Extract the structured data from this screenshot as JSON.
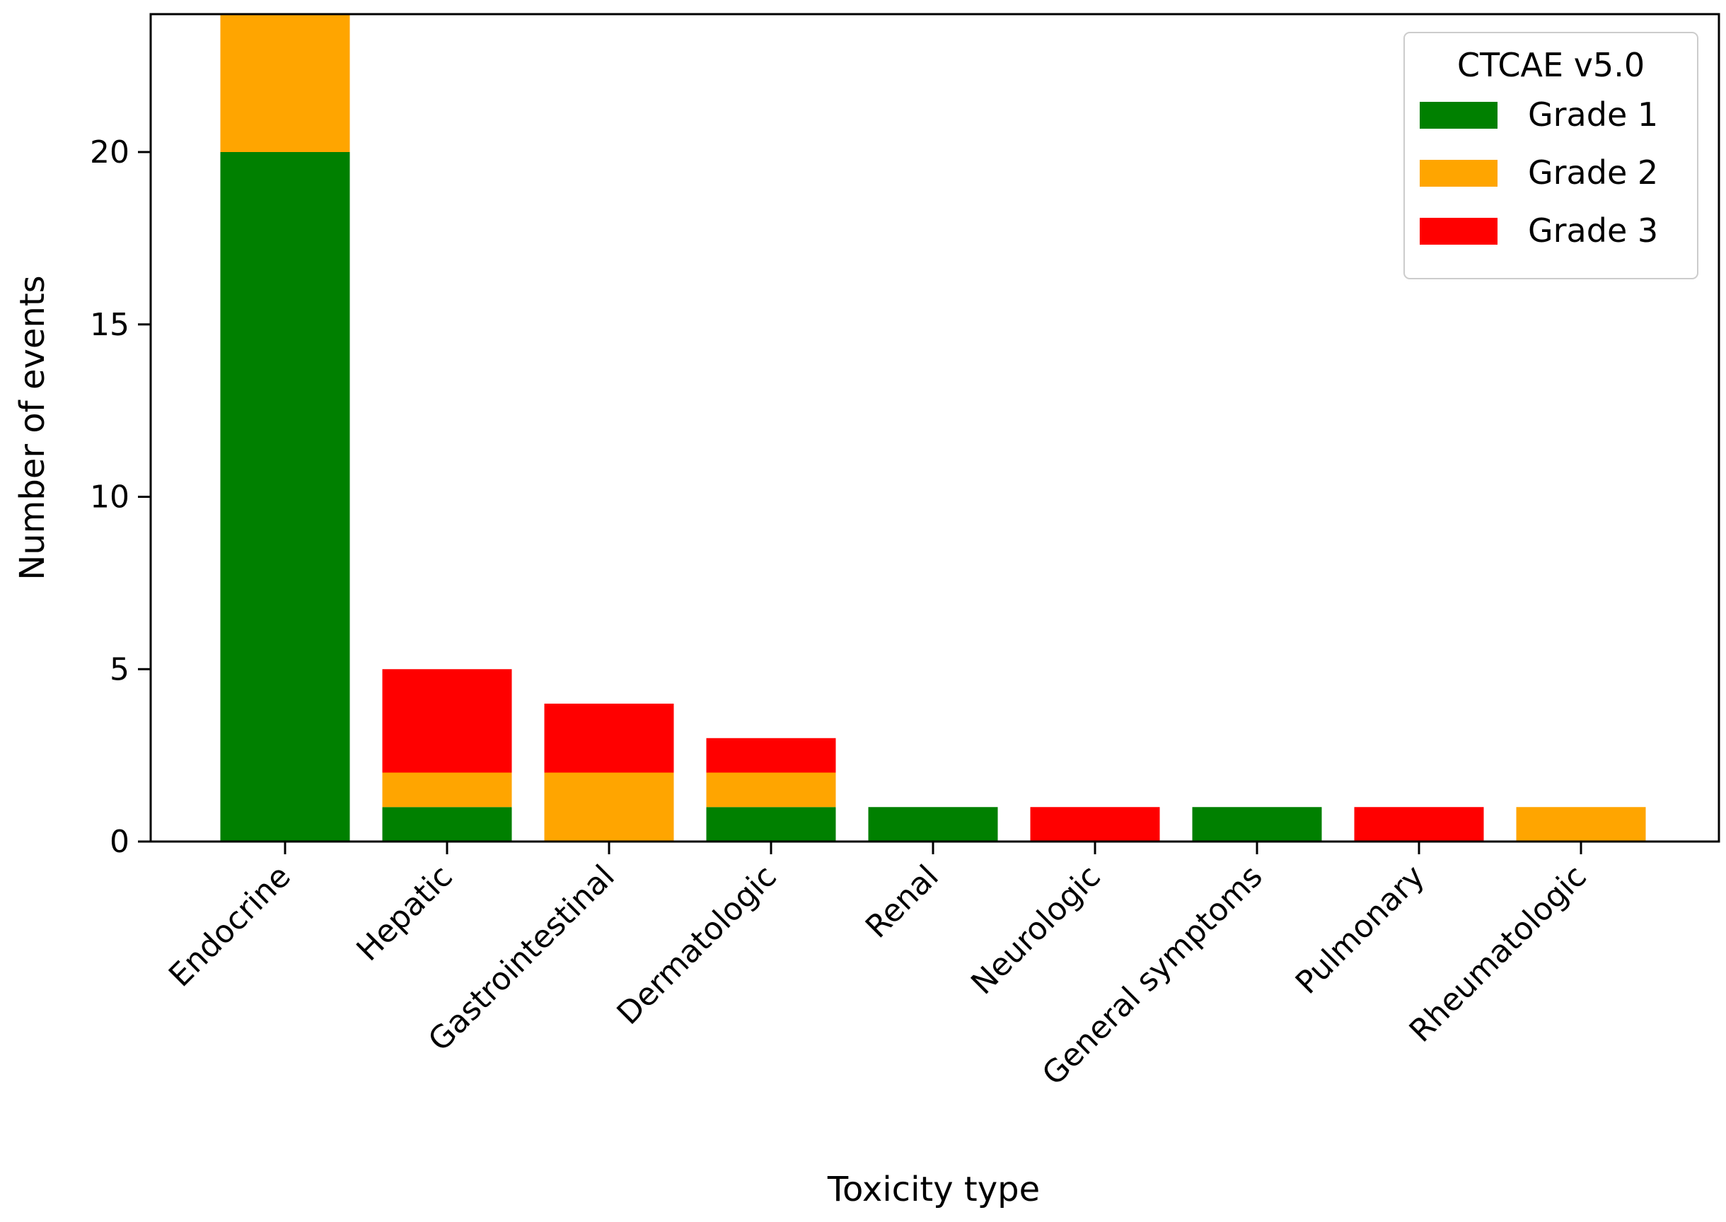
{
  "chart_data": {
    "type": "bar",
    "stacked": true,
    "categories": [
      "Endocrine",
      "Hepatic",
      "Gastrointestinal",
      "Dermatologic",
      "Renal",
      "Neurologic",
      "General symptoms",
      "Pulmonary",
      "Rheumatologic"
    ],
    "series": [
      {
        "name": "Grade 1",
        "color": "#008000",
        "values": [
          20,
          1,
          0,
          1,
          1,
          0,
          1,
          0,
          0
        ]
      },
      {
        "name": "Grade 2",
        "color": "#ffa500",
        "values": [
          4,
          1,
          2,
          1,
          0,
          0,
          0,
          0,
          1
        ]
      },
      {
        "name": "Grade 3",
        "color": "#ff0000",
        "values": [
          0,
          3,
          2,
          1,
          0,
          1,
          0,
          1,
          0
        ]
      }
    ],
    "xlabel": "Toxicity type",
    "ylabel": "Number of events",
    "ylim": [
      0,
      24
    ],
    "yticks": [
      0,
      5,
      10,
      15,
      20
    ],
    "ytick_labels": [
      "0",
      "5",
      "10",
      "15",
      "20"
    ],
    "legend": {
      "title": "CTCAE v5.0",
      "position": "top-right"
    },
    "grid": false
  }
}
